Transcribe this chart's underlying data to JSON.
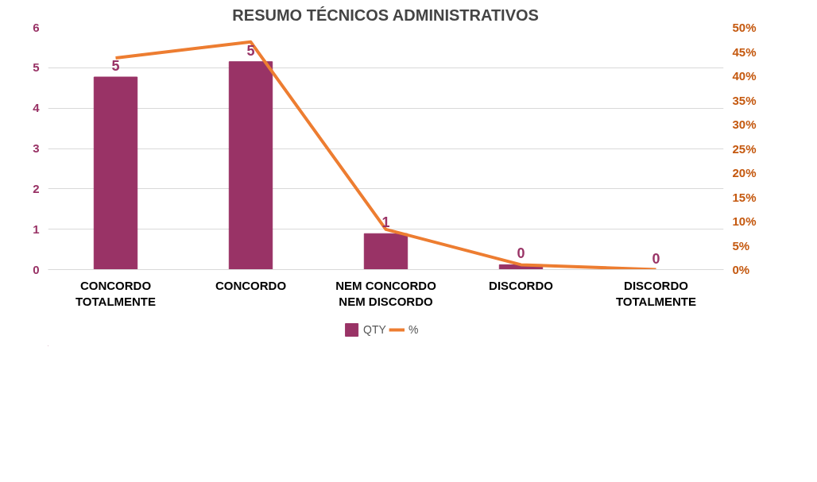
{
  "chart_data": {
    "type": "bar",
    "title": "RESUMO TÉCNICOS ADMINISTRATIVOS",
    "categories": [
      "CONCORDO TOTALMENTE",
      "CONCORDO",
      "NEM CONCORDO NEM DISCORDO",
      "DISCORDO",
      "DISCORDO TOTALMENTE"
    ],
    "series": [
      {
        "name": "QTY",
        "color": "#993366",
        "values": [
          4.77,
          5.15,
          0.89,
          0.12,
          0
        ],
        "value_labels": [
          "5",
          "5",
          "1",
          "0",
          "0"
        ]
      },
      {
        "name": "%",
        "type": "line",
        "axis": "y2",
        "color": "#ed7d31",
        "values": [
          43.7,
          47,
          8.3,
          1,
          0
        ]
      }
    ],
    "ylim": [
      0,
      6
    ],
    "yticks": [
      0,
      1,
      2,
      3,
      4,
      5,
      6
    ],
    "y2lim": [
      0,
      50
    ],
    "y2ticks": [
      {
        "value": 0,
        "label": "0%"
      },
      {
        "value": 5,
        "label": "5%"
      },
      {
        "value": 10,
        "label": "10%"
      },
      {
        "value": 15,
        "label": "15%"
      },
      {
        "value": 20,
        "label": "20%"
      },
      {
        "value": 25,
        "label": "25%"
      },
      {
        "value": 30,
        "label": "30%"
      },
      {
        "value": 35,
        "label": "35%"
      },
      {
        "value": 40,
        "label": "40%"
      },
      {
        "value": 45,
        "label": "45%"
      },
      {
        "value": 50,
        "label": "50%"
      }
    ],
    "grid": "y",
    "legend": "bottom",
    "marker": "none",
    "line_style": "solid"
  }
}
